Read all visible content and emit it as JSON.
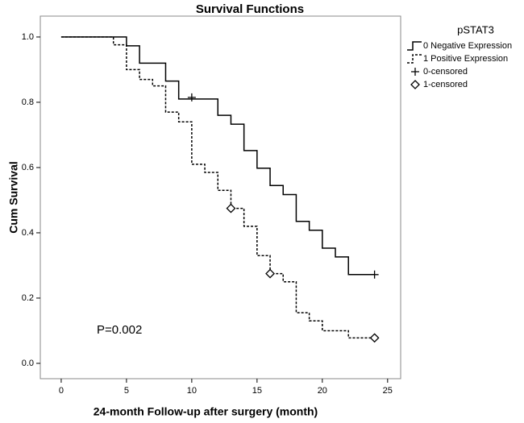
{
  "chart_data": {
    "type": "step",
    "title": "Survival Functions",
    "x_label": "24-month Follow-up after surgery (month)",
    "y_label": "Cum Survival",
    "legend_title": "pSTAT3",
    "annotation": "P=0.002",
    "xlim": [
      -1.6,
      26
    ],
    "ylim": [
      -0.047,
      1.064
    ],
    "xticks": [
      0,
      5,
      10,
      15,
      20,
      25
    ],
    "yticks": [
      {
        "value": 0,
        "label": "0.0"
      },
      {
        "value": 0.2,
        "label": "0.2"
      },
      {
        "value": 0.4,
        "label": "0.4"
      },
      {
        "value": 0.6,
        "label": "0.6"
      },
      {
        "value": 0.8,
        "label": "0.8"
      },
      {
        "value": 1,
        "label": "1.0"
      }
    ],
    "grid": false,
    "legend": "right",
    "series": [
      {
        "name": "0 Negative Expression",
        "color": "#000000",
        "style": "solid",
        "x": [
          0,
          5,
          6,
          8,
          9,
          12,
          13,
          14,
          15,
          16,
          17,
          18,
          19,
          20,
          21,
          22,
          24
        ],
        "values": [
          1,
          0.973,
          0.92,
          0.865,
          0.81,
          0.76,
          0.733,
          0.652,
          0.598,
          0.545,
          0.517,
          0.435,
          0.408,
          0.353,
          0.326,
          0.272,
          0.272
        ]
      },
      {
        "name": "1 Positive Expression",
        "color": "#000000",
        "style": "dashed",
        "x": [
          0,
          4,
          5,
          6,
          7,
          8,
          9,
          10,
          11,
          12,
          13,
          14,
          15,
          16,
          17,
          18,
          19,
          20,
          22,
          24
        ],
        "values": [
          1,
          0.976,
          0.9,
          0.87,
          0.85,
          0.77,
          0.74,
          0.61,
          0.585,
          0.53,
          0.475,
          0.42,
          0.33,
          0.275,
          0.25,
          0.155,
          0.13,
          0.1,
          0.078,
          0.078
        ]
      },
      {
        "name": "0-censored",
        "color": "#000000",
        "marker": "plus",
        "x": [
          10,
          24
        ],
        "values": [
          0.815,
          0.272
        ]
      },
      {
        "name": "1-censored",
        "color": "#000000",
        "marker": "diamond",
        "x": [
          13,
          16,
          24
        ],
        "values": [
          0.475,
          0.275,
          0.078
        ]
      }
    ]
  }
}
